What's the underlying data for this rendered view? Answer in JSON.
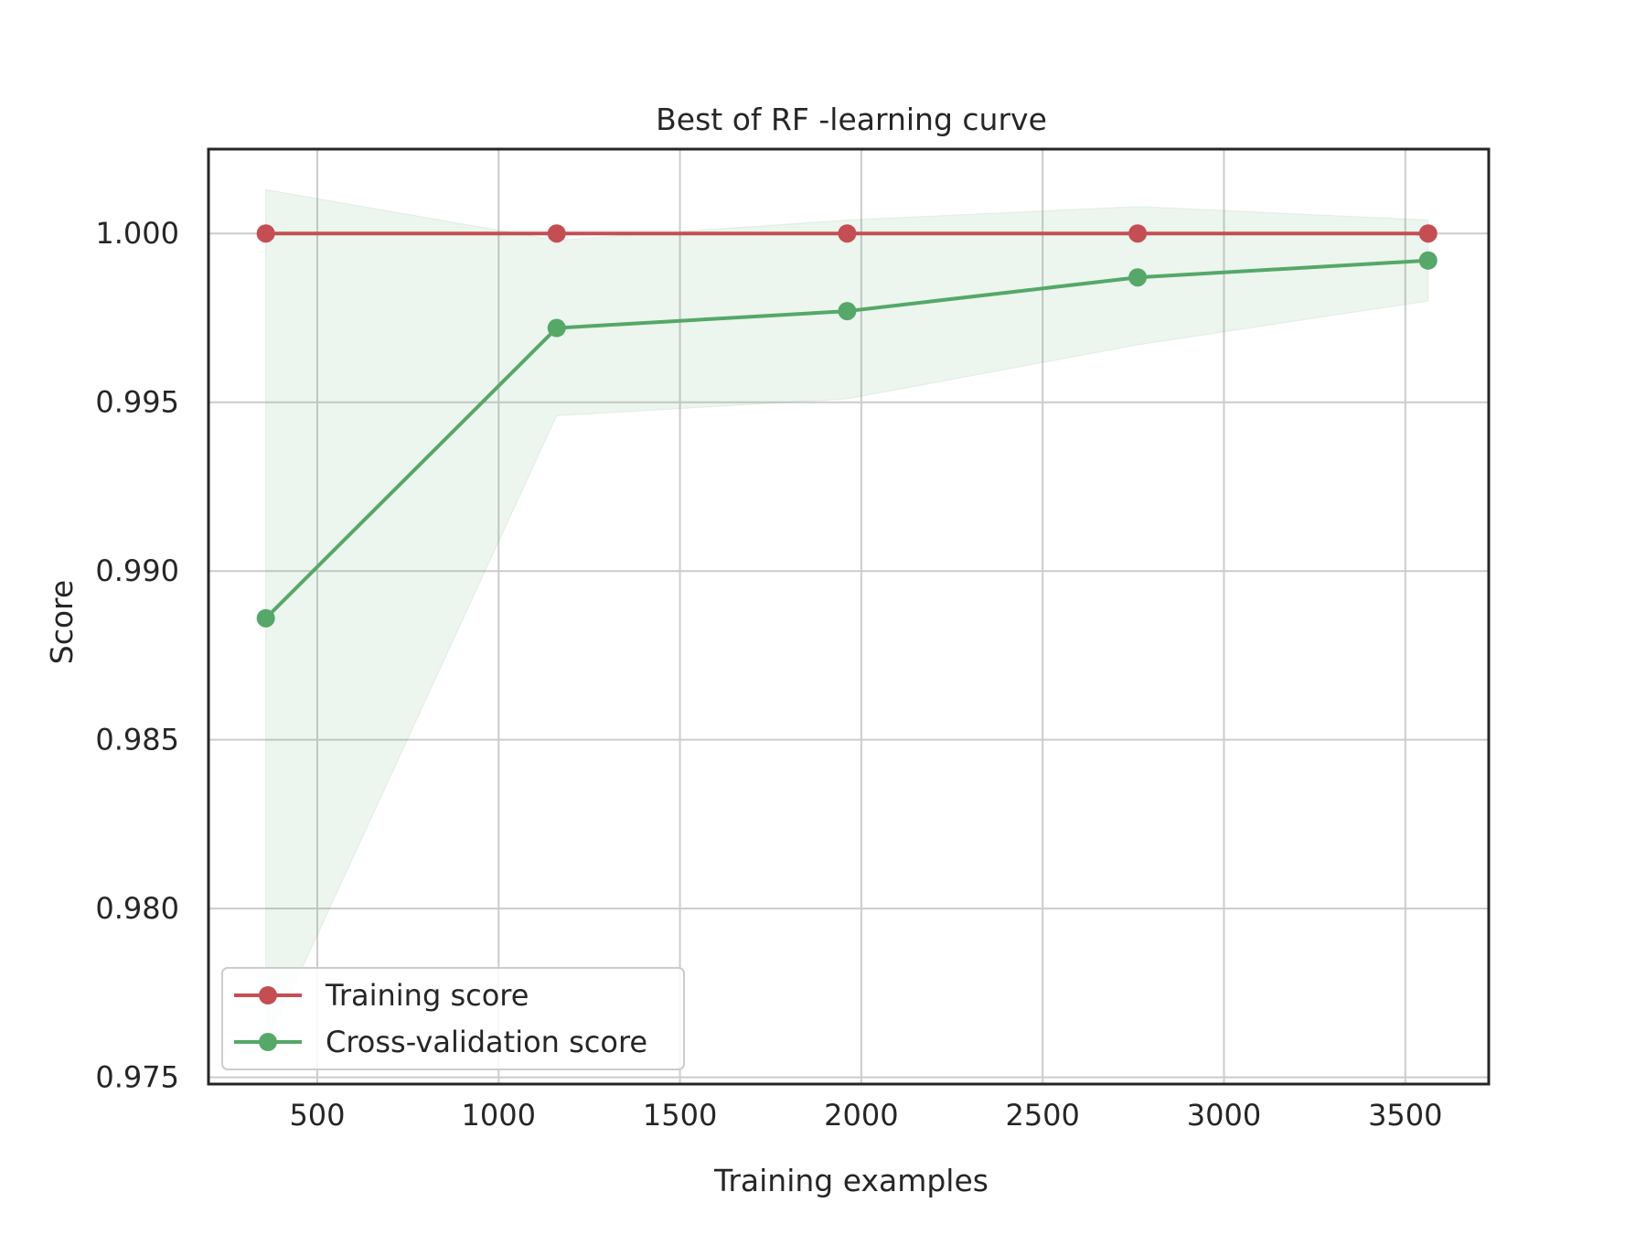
{
  "chart_data": {
    "type": "line",
    "title": "Best of RF -learning curve",
    "xlabel": "Training examples",
    "ylabel": "Score",
    "xlim": [
      200,
      3730
    ],
    "ylim": [
      0.9748,
      1.0025
    ],
    "xticks": [
      500,
      1000,
      1500,
      2000,
      2500,
      3000,
      3500
    ],
    "xtick_labels": [
      "500",
      "1000",
      "1500",
      "2000",
      "2500",
      "3000",
      "3500"
    ],
    "yticks": [
      0.975,
      0.98,
      0.985,
      0.99,
      0.995,
      1.0
    ],
    "ytick_labels": [
      "0.975",
      "0.980",
      "0.985",
      "0.990",
      "0.995",
      "1.000"
    ],
    "grid": true,
    "legend_position": "lower-left",
    "x": [
      358,
      1160,
      1961,
      2762,
      3563
    ],
    "series": [
      {
        "name": "Training score",
        "color": "#c44e52",
        "values": [
          1.0,
          1.0,
          1.0,
          1.0,
          1.0
        ],
        "band_lower": [
          1.0,
          1.0,
          1.0,
          1.0,
          1.0
        ],
        "band_upper": [
          1.0,
          1.0,
          1.0,
          1.0,
          1.0
        ]
      },
      {
        "name": "Cross-validation score",
        "color": "#55a868",
        "values": [
          0.9886,
          0.9972,
          0.9977,
          0.9987,
          0.9992
        ],
        "band_lower": [
          0.9759,
          0.9946,
          0.9951,
          0.9967,
          0.998
        ],
        "band_upper": [
          1.0013,
          0.9998,
          1.0004,
          1.0008,
          1.0004
        ]
      }
    ]
  }
}
